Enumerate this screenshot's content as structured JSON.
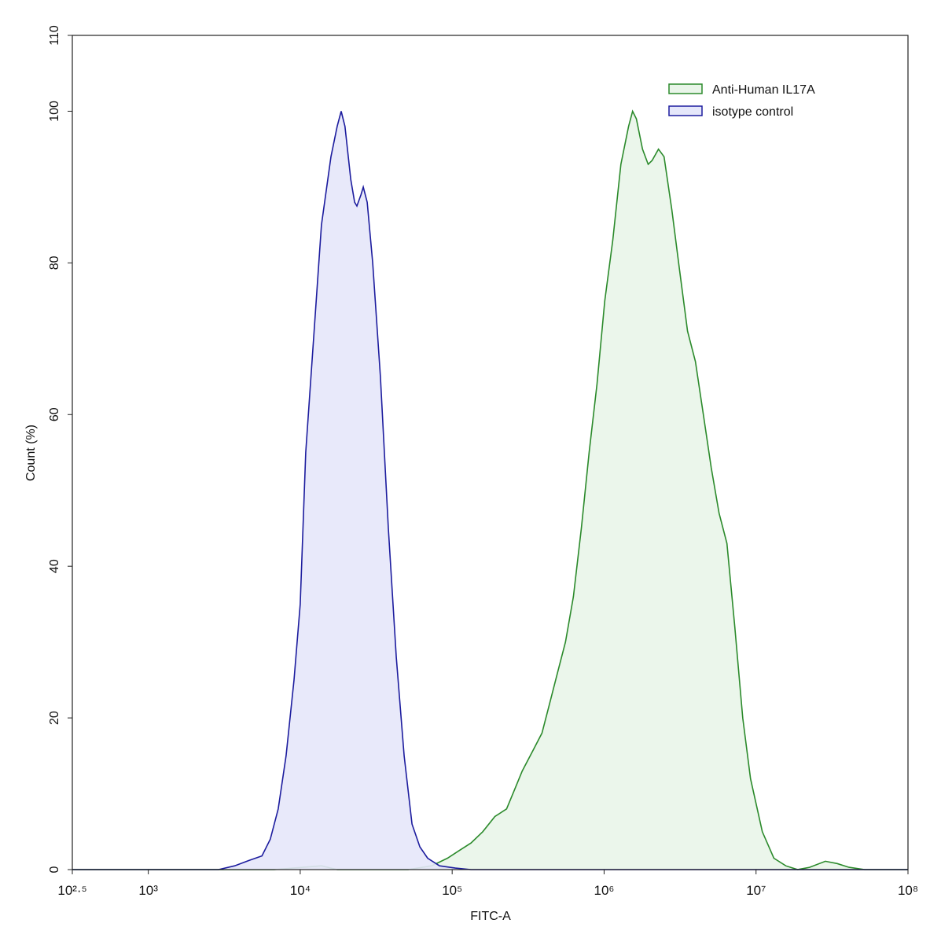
{
  "chart_data": {
    "type": "area",
    "x_label": "FITC-A",
    "y_label": "Count  (%)",
    "xscale": "log",
    "xlim": [
      316.23,
      100000000
    ],
    "xticks": [
      {
        "value": 316.23,
        "label": "10²·⁵"
      },
      {
        "value": 1000,
        "label": "10³"
      },
      {
        "value": 10000,
        "label": "10⁴"
      },
      {
        "value": 100000,
        "label": "10⁵"
      },
      {
        "value": 1000000,
        "label": "10⁶"
      },
      {
        "value": 10000000,
        "label": "10⁷"
      },
      {
        "value": 100000000,
        "label": "10⁸"
      }
    ],
    "ylim": [
      0,
      110
    ],
    "yticks": [
      0,
      20,
      40,
      60,
      80,
      100,
      110
    ],
    "legend": "upper right",
    "series": [
      {
        "name": "Anti-Human IL17A",
        "color": "#2b8a2b",
        "fill": "#e9f5e9",
        "x": [
          316.23,
          6750,
          13800,
          17500,
          51300,
          73300,
          93100,
          111000,
          133000,
          159000,
          191000,
          228000,
          257000,
          289000,
          346000,
          390000,
          439000,
          494000,
          557000,
          628000,
          708000,
          797000,
          898000,
          1010000,
          1140000,
          1290000,
          1450000,
          1540000,
          1630000,
          1790000,
          1950000,
          2070000,
          2280000,
          2480000,
          2790000,
          3140000,
          3540000,
          3990000,
          4500000,
          5070000,
          5710000,
          6430000,
          7250000,
          8170000,
          9200000,
          11000000,
          13100000,
          15700000,
          18800000,
          22500000,
          28600000,
          34200000,
          40900000,
          51900000,
          100000000
        ],
        "values": [
          0,
          0,
          0.5,
          0,
          0,
          0.5,
          1.5,
          2.5,
          3.5,
          5,
          7,
          8,
          10.5,
          13,
          16,
          18,
          22,
          26,
          30,
          36,
          45,
          55,
          64,
          75,
          83,
          93,
          98,
          100,
          99,
          95,
          93,
          93.5,
          95,
          94,
          87,
          79,
          71,
          67,
          60,
          53,
          47,
          43,
          32,
          20,
          12,
          5,
          1.5,
          0.5,
          0,
          0.3,
          1.1,
          0.8,
          0.3,
          0,
          0
        ]
      },
      {
        "name": "isotype control",
        "color": "#1c1c9e",
        "fill": "#e5e7fa",
        "x": [
          316.23,
          1100,
          2900,
          3700,
          4600,
          5600,
          6350,
          7160,
          8070,
          9100,
          10000,
          10870,
          12250,
          13800,
          15930,
          17500,
          18600,
          19700,
          21500,
          22800,
          23600,
          25100,
          26000,
          27600,
          30000,
          33700,
          38000,
          42900,
          48300,
          54400,
          61300,
          69000,
          82600,
          105000,
          133000,
          1450000,
          100000000
        ],
        "values": [
          0,
          0,
          0,
          0.5,
          1.2,
          1.8,
          4,
          8,
          15,
          25,
          35,
          55,
          70,
          85,
          94,
          98,
          100,
          98,
          91,
          88,
          87.5,
          89,
          90,
          88,
          80,
          65,
          45,
          28,
          15,
          6,
          3,
          1.5,
          0.5,
          0.2,
          0,
          0,
          0
        ]
      }
    ]
  }
}
